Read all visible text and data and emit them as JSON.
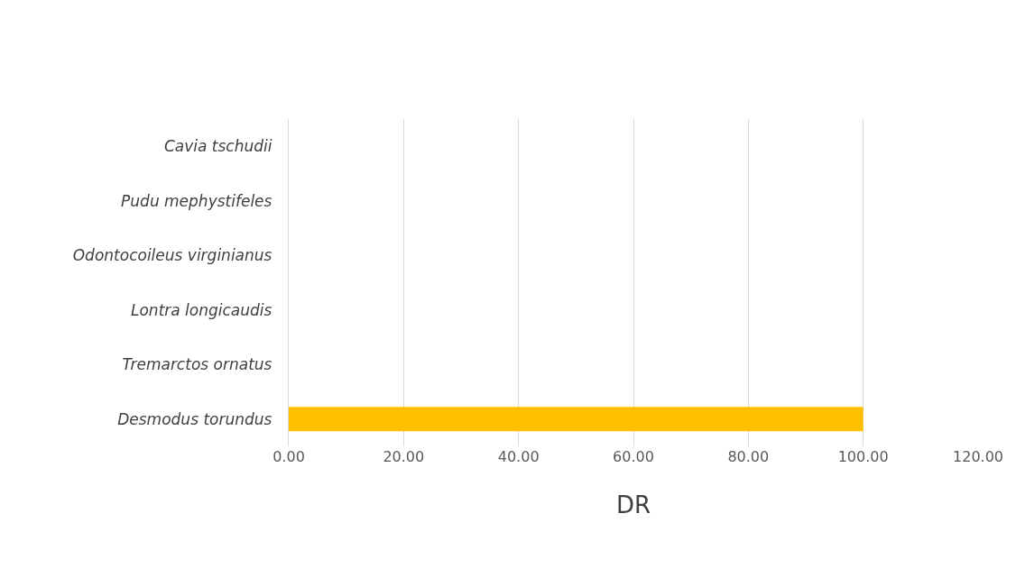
{
  "chart_data": {
    "type": "bar",
    "orientation": "horizontal",
    "xlabel": "DR",
    "categories": [
      "Cavia tschudii",
      "Pudu mephystifeles",
      "Odontocoileus virginianus",
      "Lontra longicaudis",
      "Tremarctos ornatus",
      "Desmodus torundus"
    ],
    "values": [
      0,
      0,
      0,
      0,
      0,
      100
    ],
    "color": "#ffc000",
    "xlim": [
      0,
      120
    ],
    "xticks": [
      {
        "value": 0,
        "label": "0.00"
      },
      {
        "value": 20,
        "label": "20.00"
      },
      {
        "value": 40,
        "label": "40.00"
      },
      {
        "value": 60,
        "label": "60.00"
      },
      {
        "value": 80,
        "label": "80.00"
      },
      {
        "value": 100,
        "label": "100.00"
      },
      {
        "value": 120,
        "label": "120.00"
      }
    ],
    "grid": "x"
  }
}
